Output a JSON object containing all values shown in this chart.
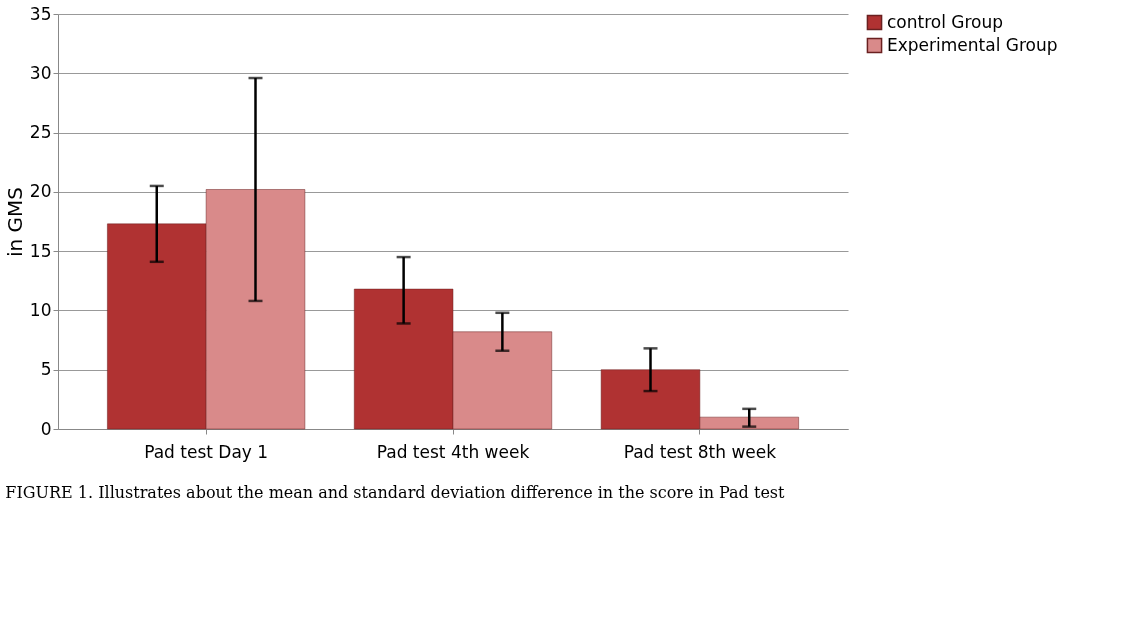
{
  "chart_data": {
    "type": "bar",
    "ylabel": "in GMS",
    "categories": [
      "Pad test  Day 1",
      "Pad test  4th week",
      "Pad test  8th week"
    ],
    "series": [
      {
        "name": "control Group",
        "color": "#b03232",
        "values": [
          17.3,
          11.8,
          5.0
        ],
        "errors": [
          [
            14.1,
            20.5
          ],
          [
            8.9,
            14.5
          ],
          [
            3.2,
            6.8
          ]
        ]
      },
      {
        "name": "Experimental Group",
        "color": "#d98a8a",
        "values": [
          20.2,
          8.2,
          1.0
        ],
        "errors": [
          [
            10.8,
            29.6
          ],
          [
            6.6,
            9.8
          ],
          [
            0.2,
            1.7
          ]
        ]
      }
    ],
    "ylim": [
      0,
      35
    ],
    "yticks": [
      0,
      5,
      10,
      15,
      20,
      25,
      30,
      35
    ],
    "grid": "y",
    "legend": "right",
    "annotations": [
      "FIGURE 1. Illustrates about the mean and standard deviation difference in the score in Pad test"
    ]
  }
}
